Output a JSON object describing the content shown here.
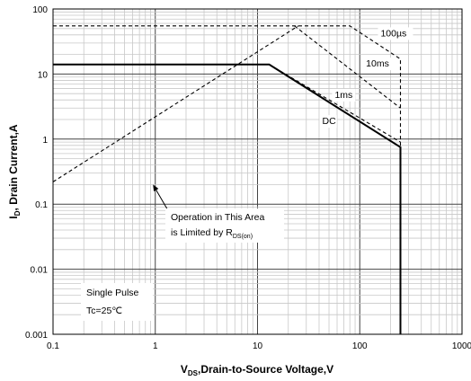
{
  "chart_data": {
    "type": "line",
    "title": "",
    "x_scale": "log",
    "y_scale": "log",
    "xlim": [
      0.1,
      1000
    ],
    "ylim": [
      0.001,
      100
    ],
    "grid": true,
    "x_ticks": [
      "0.1",
      "1",
      "10",
      "100",
      "1000"
    ],
    "y_ticks": [
      "0.001",
      "0.01",
      "0.1",
      "1",
      "10",
      "100"
    ],
    "xlabel": {
      "prefix": "V",
      "sub": "DS",
      "text": ",Drain-to-Source Voltage,V"
    },
    "ylabel": {
      "prefix": "I",
      "sub": "D",
      "text": ", Drain Current,A"
    },
    "series": [
      {
        "name": "100µs",
        "style": "dashed",
        "points": [
          [
            0.1,
            55
          ],
          [
            80,
            55
          ],
          [
            250,
            17
          ],
          [
            250,
            0.001
          ]
        ]
      },
      {
        "name": "10ms",
        "style": "dashed",
        "points": [
          [
            23,
            55
          ],
          [
            250,
            3
          ]
        ]
      },
      {
        "name": "1ms",
        "style": "dashed",
        "points": [
          [
            13,
            14
          ],
          [
            250,
            0.9
          ]
        ]
      },
      {
        "name": "DC",
        "style": "solid",
        "points": [
          [
            0.1,
            14
          ],
          [
            13,
            14
          ],
          [
            250,
            0.75
          ],
          [
            250,
            0.001
          ]
        ]
      },
      {
        "name": "",
        "style": "dashed",
        "points": [
          [
            0.1,
            0.22
          ],
          [
            25,
            55
          ]
        ]
      }
    ],
    "series_labels": [
      {
        "text": "100µs",
        "x": 160,
        "y": 38
      },
      {
        "text": "10ms",
        "x": 115,
        "y": 13
      },
      {
        "text": "1ms",
        "x": 57,
        "y": 4.3
      },
      {
        "text": "DC",
        "x": 43,
        "y": 1.7
      }
    ],
    "annotations": {
      "rds_line1": "Operation in This Area",
      "rds_line2_main": "is Limited by R",
      "rds_line2_sub": "DS(on)",
      "single_pulse": "Single Pulse",
      "tc": "Tc=25℃"
    },
    "arrow": {
      "from": [
        1.4,
        0.07
      ],
      "to": [
        0.95,
        0.2
      ]
    }
  }
}
